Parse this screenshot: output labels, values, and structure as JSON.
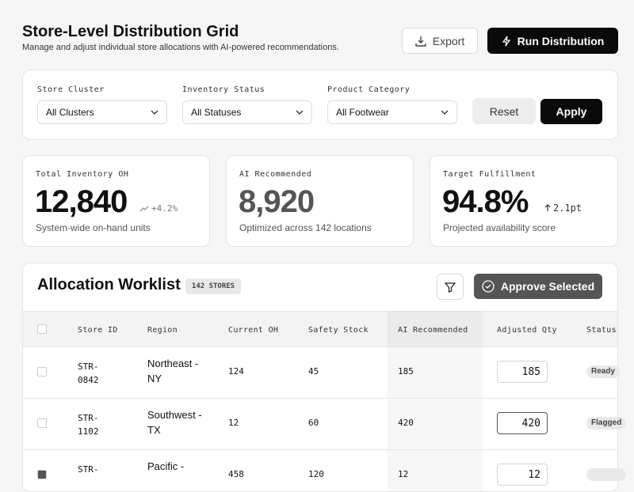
{
  "header": {
    "title": "Store-Level Distribution Grid",
    "subtitle": "Manage and adjust individual store allocations with AI-powered recommendations.",
    "actions": [
      "Export",
      "Run Distribution"
    ]
  },
  "filters": {
    "fields": [
      {
        "label": "Store Cluster",
        "value": "All Clusters"
      },
      {
        "label": "Inventory Status",
        "value": "All Statuses"
      },
      {
        "label": "Product Category",
        "value": "All Footwear"
      }
    ],
    "actions": [
      "Reset",
      "Apply"
    ]
  },
  "kpis": [
    {
      "label": "Total Inventory OH",
      "value": "12,840",
      "trend": "+4.2%",
      "note": "System-wide on-hand units"
    },
    {
      "label": "AI Recommended",
      "value": "8,920",
      "note": "Optimized across 142 locations"
    },
    {
      "label": "Target Fulfillment",
      "value": "94.8%",
      "trend": "2.1pt",
      "note": "Projected availability score"
    }
  ],
  "worklist": {
    "title": "Allocation Worklist",
    "badge": "142 STORES",
    "action": "Approve Selected",
    "columns": [
      "Store ID",
      "Region",
      "Current OH",
      "Safety Stock",
      "AI Recommended",
      "Adjusted Qty",
      "Status"
    ],
    "rows": [
      {
        "store_id": "STR-0842",
        "region": "Northeast - NY",
        "current_oh": 124,
        "safety_stock": 45,
        "ai_recommended": 185,
        "adjusted_qty": 185,
        "status": "Ready",
        "selected": false
      },
      {
        "store_id": "STR-1102",
        "region": "Southwest - TX",
        "current_oh": 12,
        "safety_stock": 60,
        "ai_recommended": 420,
        "adjusted_qty": 420,
        "status": "Flagged",
        "selected": false
      },
      {
        "store_id": "STR-",
        "region": "Pacific -",
        "current_oh": 458,
        "safety_stock": 120,
        "ai_recommended": 12,
        "adjusted_qty": 12,
        "selected": true
      }
    ]
  }
}
